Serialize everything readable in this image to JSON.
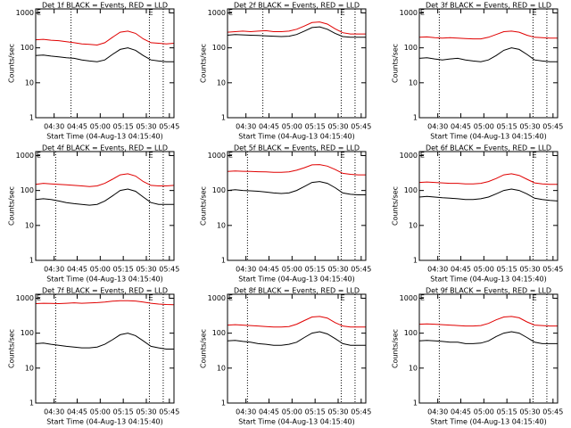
{
  "chart_data": [
    {
      "type": "line",
      "title": "Det 1f BLACK = Events, RED = LLD",
      "xlabel": "Start Time (04-Aug-13 04:15:40)",
      "ylabel": "Counts/sec",
      "log_scale": true,
      "x": [
        "04:18",
        "04:23",
        "04:28",
        "04:33",
        "04:38",
        "04:43",
        "04:48",
        "04:53",
        "04:58",
        "05:03",
        "05:08",
        "05:13",
        "05:18",
        "05:23",
        "05:28",
        "05:33",
        "05:38",
        "05:43",
        "05:48"
      ],
      "series": [
        {
          "name": "Events",
          "color": "#000000",
          "values": [
            60,
            62,
            58,
            55,
            52,
            50,
            45,
            42,
            40,
            45,
            65,
            90,
            100,
            85,
            60,
            45,
            42,
            40,
            40
          ]
        },
        {
          "name": "LLD",
          "color": "#e00000",
          "values": [
            170,
            175,
            165,
            160,
            150,
            140,
            130,
            125,
            120,
            140,
            200,
            280,
            300,
            260,
            180,
            140,
            135,
            130,
            135
          ]
        }
      ],
      "xlim": [
        "04:18",
        "05:48"
      ],
      "xticks": [
        "04:30",
        "04:45",
        "05:00",
        "05:15",
        "05:30",
        "05:45"
      ],
      "ylim": [
        1,
        1300
      ],
      "yticks": [
        1,
        10,
        100,
        1000
      ],
      "vlines": [
        "04:41",
        "05:32",
        "05:41"
      ],
      "markers": [
        {
          "x": "04:20",
          "label": "E"
        },
        {
          "x": "05:33",
          "label": "E"
        }
      ]
    },
    {
      "type": "line",
      "title": "Det 2f BLACK = Events, RED = LLD",
      "xlabel": "Start Time (04-Aug-13 04:15:40)",
      "ylabel": "Counts/sec",
      "log_scale": true,
      "x": [
        "04:18",
        "04:23",
        "04:28",
        "04:33",
        "04:38",
        "04:43",
        "04:48",
        "04:53",
        "04:58",
        "05:03",
        "05:08",
        "05:13",
        "05:18",
        "05:23",
        "05:28",
        "05:33",
        "05:38",
        "05:43",
        "05:48"
      ],
      "series": [
        {
          "name": "Events",
          "color": "#000000",
          "values": [
            230,
            240,
            235,
            230,
            225,
            220,
            215,
            210,
            215,
            240,
            300,
            380,
            400,
            340,
            260,
            210,
            200,
            200,
            200
          ]
        },
        {
          "name": "LLD",
          "color": "#e00000",
          "values": [
            280,
            290,
            300,
            290,
            300,
            310,
            290,
            290,
            300,
            340,
            420,
            530,
            550,
            480,
            350,
            270,
            250,
            250,
            250
          ]
        }
      ],
      "xlim": [
        "04:18",
        "05:48"
      ],
      "xticks": [
        "04:30",
        "04:45",
        "05:00",
        "05:15",
        "05:30",
        "05:45"
      ],
      "ylim": [
        1,
        1300
      ],
      "yticks": [
        1,
        10,
        100,
        1000
      ],
      "vlines": [
        "04:41",
        "05:32",
        "05:41"
      ],
      "markers": [
        {
          "x": "04:20",
          "label": "E"
        },
        {
          "x": "05:33",
          "label": "E"
        }
      ]
    },
    {
      "type": "line",
      "title": "Det 3f BLACK = Events, RED = LLD",
      "xlabel": "Start Time (04-Aug-13 04:15:40)",
      "ylabel": "Counts/sec",
      "log_scale": true,
      "x": [
        "04:18",
        "04:23",
        "04:28",
        "04:33",
        "04:38",
        "04:43",
        "04:48",
        "04:53",
        "04:58",
        "05:03",
        "05:08",
        "05:13",
        "05:18",
        "05:23",
        "05:28",
        "05:33",
        "05:38",
        "05:43",
        "05:48"
      ],
      "series": [
        {
          "name": "Events",
          "color": "#000000",
          "values": [
            50,
            52,
            48,
            45,
            48,
            50,
            45,
            42,
            40,
            45,
            60,
            85,
            100,
            90,
            65,
            45,
            42,
            40,
            40
          ]
        },
        {
          "name": "LLD",
          "color": "#e00000",
          "values": [
            200,
            205,
            195,
            190,
            195,
            190,
            185,
            180,
            180,
            200,
            240,
            290,
            300,
            280,
            230,
            200,
            195,
            190,
            190
          ]
        }
      ],
      "xlim": [
        "04:18",
        "05:48"
      ],
      "xticks": [
        "04:30",
        "04:45",
        "05:00",
        "05:15",
        "05:30",
        "05:45"
      ],
      "ylim": [
        1,
        1300
      ],
      "yticks": [
        1,
        10,
        100,
        1000
      ],
      "vlines": [
        "04:31",
        "05:32",
        "05:41"
      ],
      "markers": [
        {
          "x": "04:20",
          "label": "E"
        },
        {
          "x": "05:33",
          "label": "E"
        }
      ]
    },
    {
      "type": "line",
      "title": "Det 4f BLACK = Events, RED = LLD",
      "xlabel": "Start Time (04-Aug-13 04:15:40)",
      "ylabel": "Counts/sec",
      "log_scale": true,
      "x": [
        "04:18",
        "04:23",
        "04:28",
        "04:33",
        "04:38",
        "04:43",
        "04:48",
        "04:53",
        "04:58",
        "05:03",
        "05:08",
        "05:13",
        "05:18",
        "05:23",
        "05:28",
        "05:33",
        "05:38",
        "05:43",
        "05:48"
      ],
      "series": [
        {
          "name": "Events",
          "color": "#000000",
          "values": [
            55,
            58,
            55,
            50,
            45,
            42,
            40,
            38,
            40,
            50,
            70,
            100,
            110,
            95,
            65,
            45,
            40,
            40,
            40
          ]
        },
        {
          "name": "LLD",
          "color": "#e00000",
          "values": [
            150,
            160,
            155,
            150,
            145,
            140,
            135,
            130,
            135,
            160,
            210,
            280,
            300,
            260,
            180,
            140,
            135,
            135,
            140
          ]
        }
      ],
      "xlim": [
        "04:18",
        "05:48"
      ],
      "xticks": [
        "04:30",
        "04:45",
        "05:00",
        "05:15",
        "05:30",
        "05:45"
      ],
      "ylim": [
        1,
        1300
      ],
      "yticks": [
        1,
        10,
        100,
        1000
      ],
      "vlines": [
        "04:31",
        "05:32",
        "05:41"
      ],
      "markers": [
        {
          "x": "04:20",
          "label": "E"
        },
        {
          "x": "05:33",
          "label": "E"
        }
      ]
    },
    {
      "type": "line",
      "title": "Det 5f BLACK = Events, RED = LLD",
      "xlabel": "Start Time (04-Aug-13 04:15:40)",
      "ylabel": "Counts/sec",
      "log_scale": true,
      "x": [
        "04:18",
        "04:23",
        "04:28",
        "04:33",
        "04:38",
        "04:43",
        "04:48",
        "04:53",
        "04:58",
        "05:03",
        "05:08",
        "05:13",
        "05:18",
        "05:23",
        "05:28",
        "05:33",
        "05:38",
        "05:43",
        "05:48"
      ],
      "series": [
        {
          "name": "Events",
          "color": "#000000",
          "values": [
            100,
            105,
            100,
            98,
            95,
            90,
            85,
            82,
            85,
            100,
            130,
            170,
            180,
            160,
            120,
            85,
            78,
            75,
            75
          ]
        },
        {
          "name": "LLD",
          "color": "#e00000",
          "values": [
            350,
            360,
            355,
            350,
            345,
            340,
            330,
            330,
            340,
            380,
            450,
            540,
            550,
            500,
            400,
            310,
            290,
            280,
            280
          ]
        }
      ],
      "xlim": [
        "04:18",
        "05:48"
      ],
      "xticks": [
        "04:30",
        "04:45",
        "05:00",
        "05:15",
        "05:30",
        "05:45"
      ],
      "ylim": [
        1,
        1300
      ],
      "yticks": [
        1,
        10,
        100,
        1000
      ],
      "vlines": [
        "04:31",
        "05:32",
        "05:41"
      ],
      "markers": [
        {
          "x": "04:20",
          "label": "E"
        },
        {
          "x": "05:33",
          "label": "E"
        }
      ]
    },
    {
      "type": "line",
      "title": "Det 6f BLACK = Events, RED = LLD",
      "xlabel": "Start Time (04-Aug-13 04:15:40)",
      "ylabel": "Counts/sec",
      "log_scale": true,
      "x": [
        "04:18",
        "04:23",
        "04:28",
        "04:33",
        "04:38",
        "04:43",
        "04:48",
        "04:53",
        "04:58",
        "05:03",
        "05:08",
        "05:13",
        "05:18",
        "05:23",
        "05:28",
        "05:33",
        "05:38",
        "05:43",
        "05:48"
      ],
      "series": [
        {
          "name": "Events",
          "color": "#000000",
          "values": [
            65,
            68,
            65,
            62,
            60,
            58,
            55,
            55,
            58,
            65,
            80,
            100,
            110,
            100,
            80,
            60,
            55,
            52,
            50
          ]
        },
        {
          "name": "LLD",
          "color": "#e00000",
          "values": [
            170,
            175,
            170,
            165,
            160,
            160,
            155,
            155,
            160,
            180,
            220,
            280,
            300,
            270,
            210,
            165,
            155,
            150,
            150
          ]
        }
      ],
      "xlim": [
        "04:18",
        "05:48"
      ],
      "xticks": [
        "04:30",
        "04:45",
        "05:00",
        "05:15",
        "05:30",
        "05:45"
      ],
      "ylim": [
        1,
        1300
      ],
      "yticks": [
        1,
        10,
        100,
        1000
      ],
      "vlines": [
        "04:31",
        "05:32",
        "05:41"
      ],
      "markers": [
        {
          "x": "04:20",
          "label": "E"
        },
        {
          "x": "05:33",
          "label": "E"
        }
      ]
    },
    {
      "type": "line",
      "title": "Det 7f BLACK = Events, RED = LLD",
      "xlabel": "Start Time (04-Aug-13 04:15:40)",
      "ylabel": "Counts/sec",
      "log_scale": true,
      "x": [
        "04:18",
        "04:23",
        "04:28",
        "04:33",
        "04:38",
        "04:43",
        "04:48",
        "04:53",
        "04:58",
        "05:03",
        "05:08",
        "05:13",
        "05:18",
        "05:23",
        "05:28",
        "05:33",
        "05:38",
        "05:43",
        "05:48"
      ],
      "series": [
        {
          "name": "Events",
          "color": "#000000",
          "values": [
            50,
            52,
            48,
            45,
            42,
            40,
            38,
            38,
            40,
            48,
            65,
            90,
            100,
            85,
            60,
            42,
            38,
            35,
            35
          ]
        },
        {
          "name": "LLD",
          "color": "#e00000",
          "values": [
            700,
            720,
            710,
            700,
            720,
            740,
            720,
            730,
            750,
            780,
            820,
            850,
            850,
            830,
            780,
            720,
            680,
            660,
            650
          ]
        }
      ],
      "xlim": [
        "04:18",
        "05:48"
      ],
      "xticks": [
        "04:30",
        "04:45",
        "05:00",
        "05:15",
        "05:30",
        "05:45"
      ],
      "ylim": [
        1,
        1300
      ],
      "yticks": [
        1,
        10,
        100,
        1000
      ],
      "vlines": [
        "04:31",
        "05:32",
        "05:41"
      ],
      "markers": [
        {
          "x": "04:20",
          "label": "E"
        },
        {
          "x": "05:33",
          "label": "E"
        }
      ]
    },
    {
      "type": "line",
      "title": "Det 8f BLACK = Events, RED = LLD",
      "xlabel": "Start Time (04-Aug-13 04:15:40)",
      "ylabel": "Counts/sec",
      "log_scale": true,
      "x": [
        "04:18",
        "04:23",
        "04:28",
        "04:33",
        "04:38",
        "04:43",
        "04:48",
        "04:53",
        "04:58",
        "05:03",
        "05:08",
        "05:13",
        "05:18",
        "05:23",
        "05:28",
        "05:33",
        "05:38",
        "05:43",
        "05:48"
      ],
      "series": [
        {
          "name": "Events",
          "color": "#000000",
          "values": [
            60,
            62,
            58,
            55,
            50,
            48,
            45,
            45,
            48,
            55,
            75,
            100,
            110,
            95,
            70,
            50,
            45,
            45,
            45
          ]
        },
        {
          "name": "LLD",
          "color": "#e00000",
          "values": [
            170,
            175,
            170,
            165,
            160,
            155,
            150,
            150,
            155,
            180,
            230,
            290,
            300,
            270,
            200,
            160,
            150,
            150,
            150
          ]
        }
      ],
      "xlim": [
        "04:18",
        "05:48"
      ],
      "xticks": [
        "04:30",
        "04:45",
        "05:00",
        "05:15",
        "05:30",
        "05:45"
      ],
      "ylim": [
        1,
        1300
      ],
      "yticks": [
        1,
        10,
        100,
        1000
      ],
      "vlines": [
        "04:31",
        "05:32",
        "05:41"
      ],
      "markers": [
        {
          "x": "04:20",
          "label": "E"
        },
        {
          "x": "05:33",
          "label": "E"
        }
      ]
    },
    {
      "type": "line",
      "title": "Det 9f BLACK = Events, RED = LLD",
      "xlabel": "Start Time (04-Aug-13 04:15:40)",
      "ylabel": "Counts/sec",
      "log_scale": true,
      "x": [
        "04:18",
        "04:23",
        "04:28",
        "04:33",
        "04:38",
        "04:43",
        "04:48",
        "04:53",
        "04:58",
        "05:03",
        "05:08",
        "05:13",
        "05:18",
        "05:23",
        "05:28",
        "05:33",
        "05:38",
        "05:43",
        "05:48"
      ],
      "series": [
        {
          "name": "Events",
          "color": "#000000",
          "values": [
            60,
            62,
            60,
            58,
            55,
            55,
            50,
            50,
            52,
            60,
            80,
            100,
            110,
            100,
            75,
            55,
            50,
            50,
            50
          ]
        },
        {
          "name": "LLD",
          "color": "#e00000",
          "values": [
            180,
            185,
            180,
            175,
            170,
            165,
            160,
            160,
            165,
            190,
            240,
            290,
            300,
            275,
            210,
            170,
            165,
            160,
            160
          ]
        }
      ],
      "xlim": [
        "04:18",
        "05:48"
      ],
      "xticks": [
        "04:30",
        "04:45",
        "05:00",
        "05:15",
        "05:30",
        "05:45"
      ],
      "ylim": [
        1,
        1300
      ],
      "yticks": [
        1,
        10,
        100,
        1000
      ],
      "vlines": [
        "04:31",
        "05:32",
        "05:41"
      ],
      "markers": [
        {
          "x": "04:20",
          "label": "E"
        },
        {
          "x": "05:33",
          "label": "E"
        }
      ]
    }
  ]
}
